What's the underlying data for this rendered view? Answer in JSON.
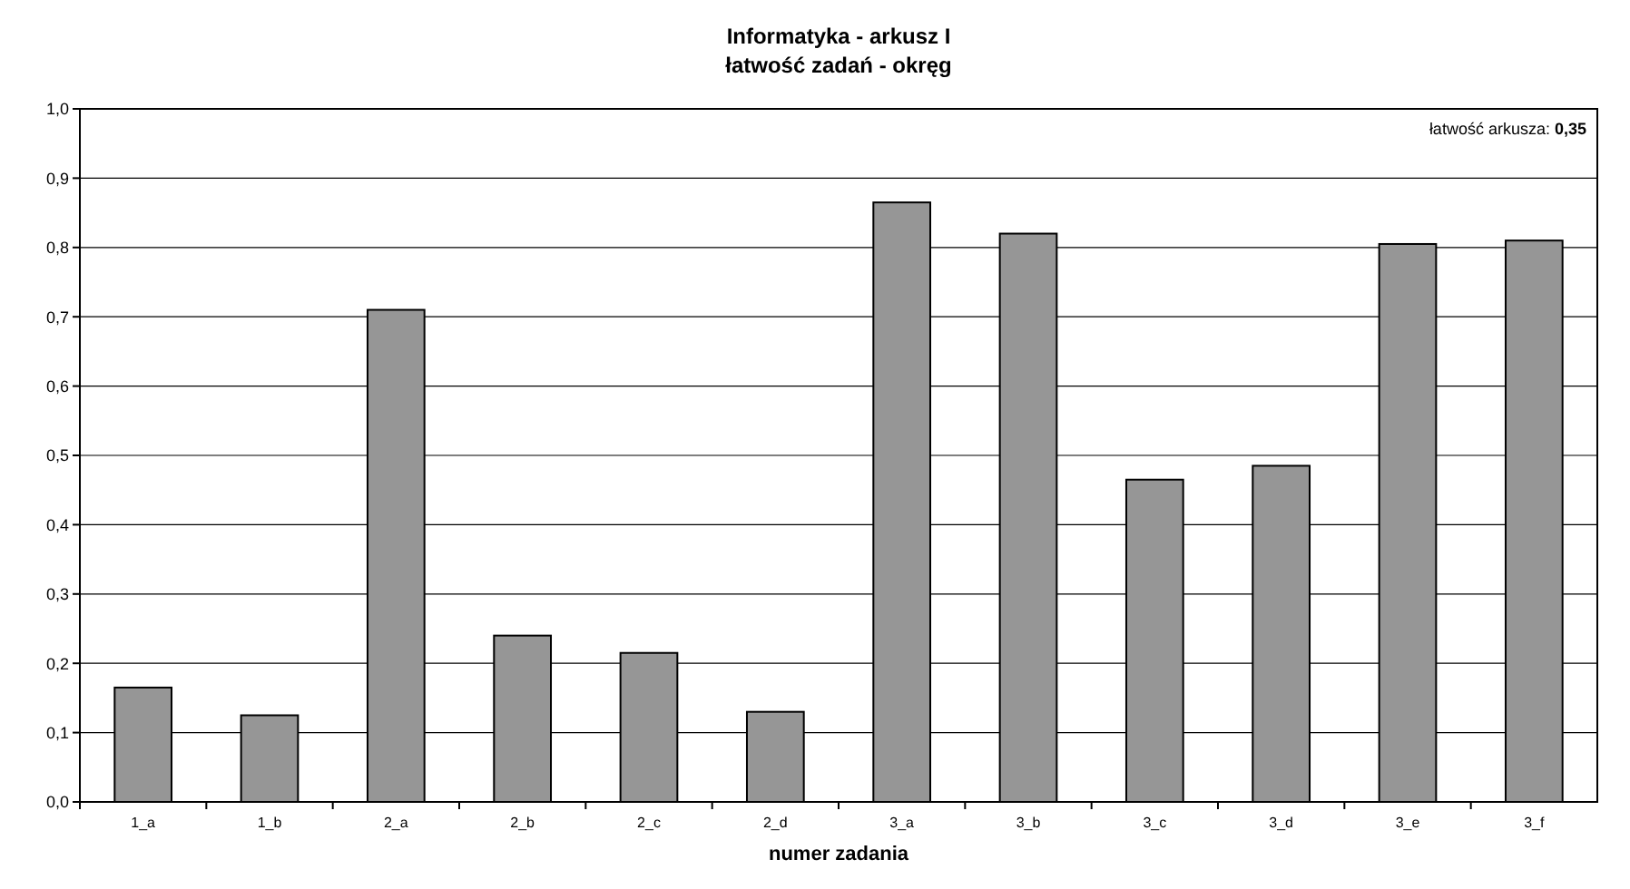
{
  "chart_data": {
    "type": "bar",
    "title": "Informatyka - arkusz I\nłatwość zadań - okręg",
    "xlabel": "numer zadania",
    "categories": [
      "1_a",
      "1_b",
      "2_a",
      "2_b",
      "2_c",
      "2_d",
      "3_a",
      "3_b",
      "3_c",
      "3_d",
      "3_e",
      "3_f"
    ],
    "values": [
      0.165,
      0.125,
      0.71,
      0.24,
      0.215,
      0.13,
      0.865,
      0.82,
      0.465,
      0.485,
      0.805,
      0.81
    ],
    "color": "#969696",
    "ylim": [
      0,
      1
    ],
    "yticks": [
      {
        "value": 0,
        "label": "0,0"
      },
      {
        "value": 0.1,
        "label": "0,1"
      },
      {
        "value": 0.2,
        "label": "0,2"
      },
      {
        "value": 0.3,
        "label": "0,3"
      },
      {
        "value": 0.4,
        "label": "0,4"
      },
      {
        "value": 0.5,
        "label": "0,5"
      },
      {
        "value": 0.6,
        "label": "0,6"
      },
      {
        "value": 0.7,
        "label": "0,7"
      },
      {
        "value": 0.8,
        "label": "0,8"
      },
      {
        "value": 0.9,
        "label": "0,9"
      },
      {
        "value": 1,
        "label": "1,0"
      }
    ],
    "grid": "y",
    "annotations": [
      "łatwość arkusza: 0,35"
    ]
  }
}
